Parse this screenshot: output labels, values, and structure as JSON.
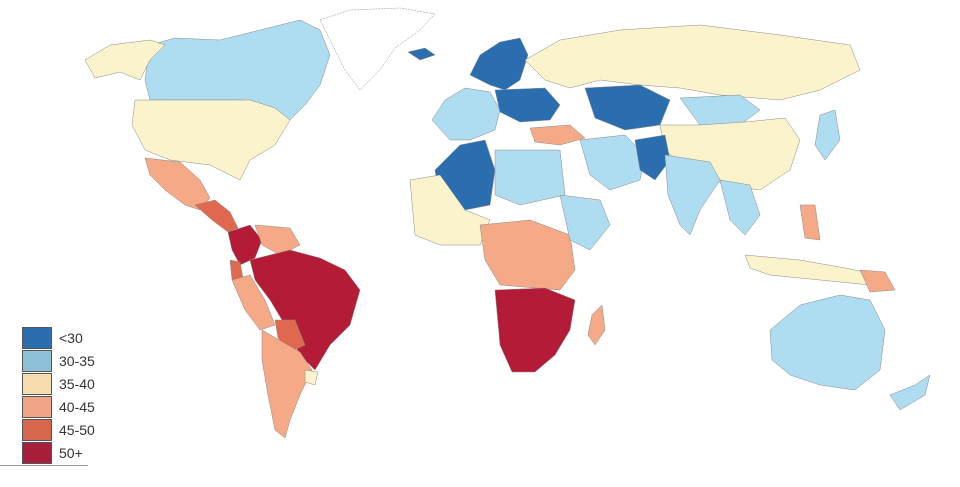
{
  "colors": {
    "band_lt30": "#2a6eb0",
    "band_30_35": "#aedcf0",
    "band_35_40": "#fbf3cb",
    "band_40_45": "#f5a987",
    "band_45_50": "#e0684e",
    "band_50p": "#b31b37",
    "no_data": "#ffffff"
  },
  "legend": {
    "items": [
      {
        "label": "<30",
        "color": "#2a6eb0"
      },
      {
        "label": "30-35",
        "color": "#8ec0d8"
      },
      {
        "label": "35-40",
        "color": "#f5ddb0"
      },
      {
        "label": "40-45",
        "color": "#f1a487"
      },
      {
        "label": "45-50",
        "color": "#d7664e"
      },
      {
        "label": "50+",
        "color": "#a81f3b"
      }
    ]
  }
}
